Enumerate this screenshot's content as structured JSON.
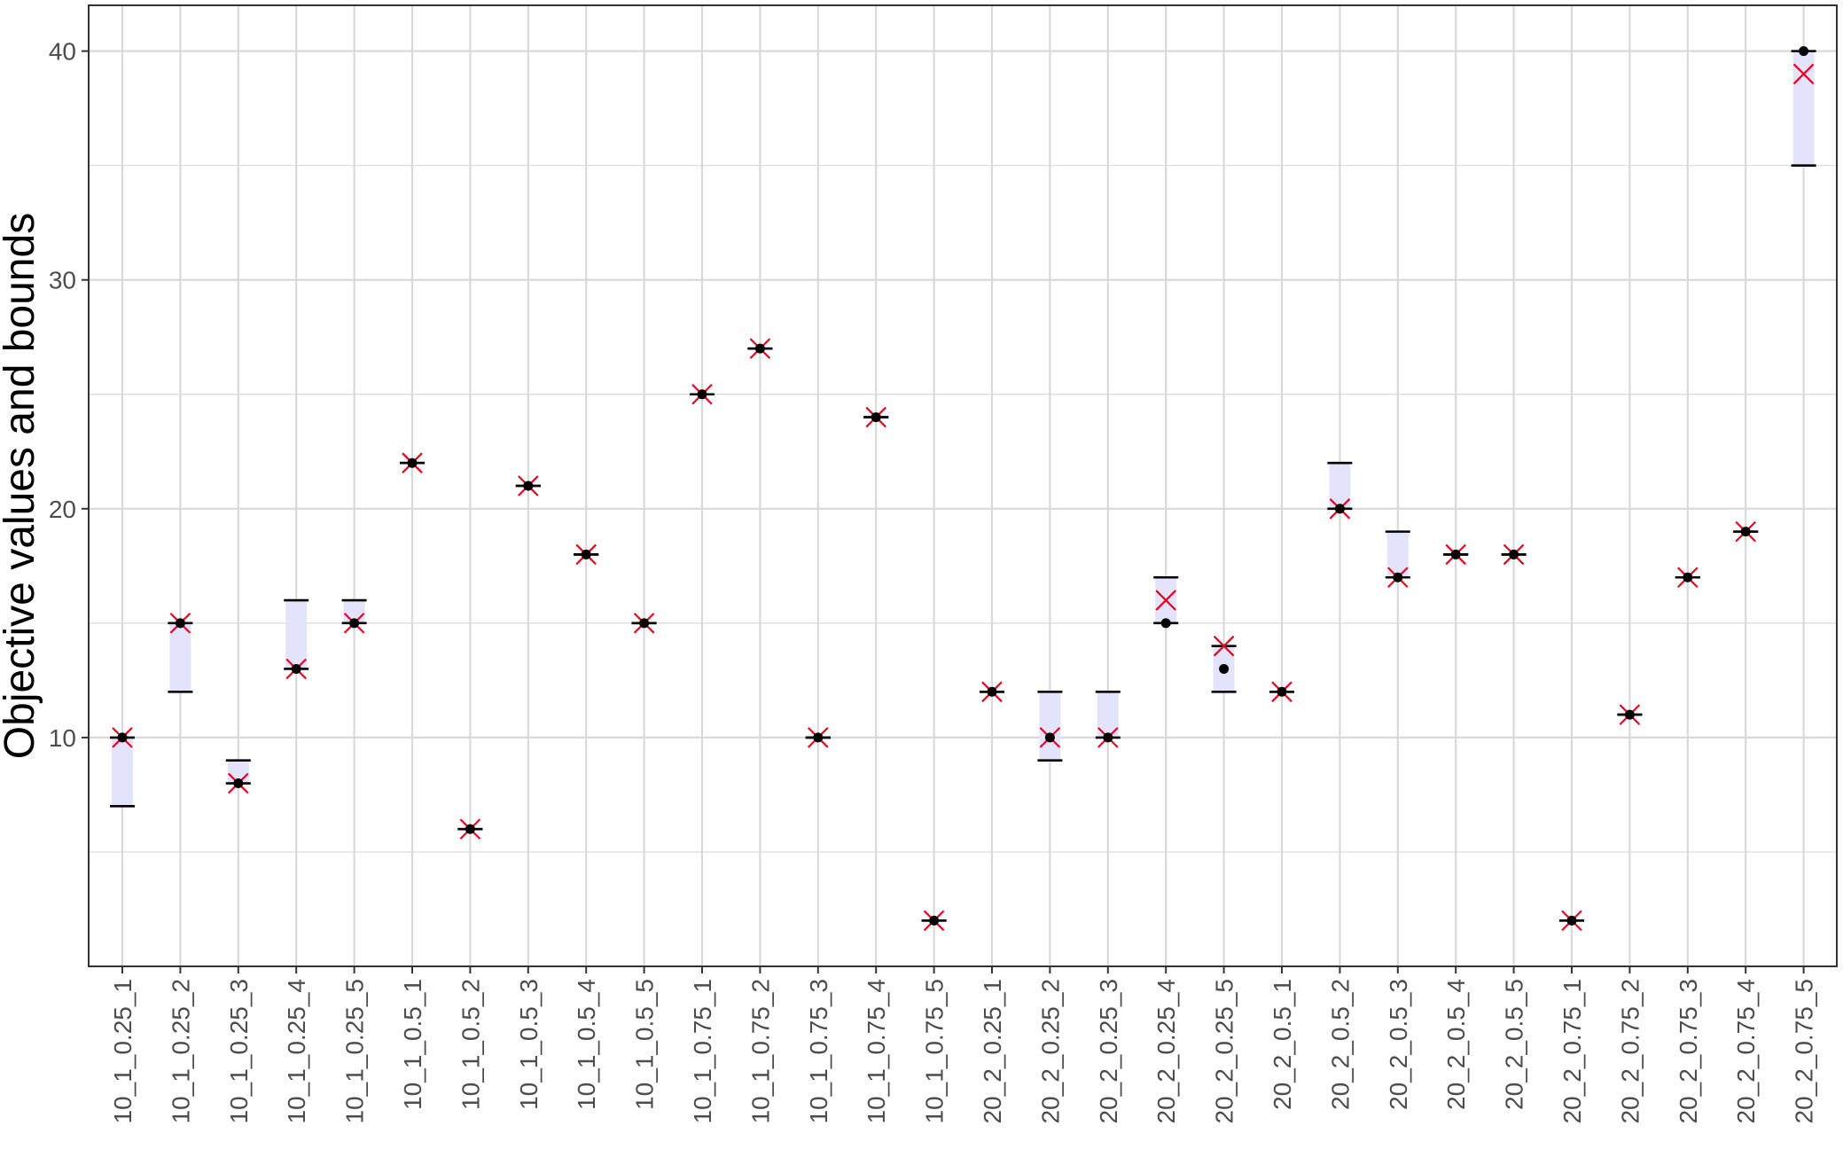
{
  "chart_data": {
    "type": "scatter",
    "title": "",
    "xlabel": "",
    "ylabel": "Objective values and bounds",
    "ylim": [
      0,
      42
    ],
    "yticks": [
      10,
      20,
      30,
      40
    ],
    "grid": true,
    "legend": "none",
    "colors": {
      "bound_band": "#e3e3fb",
      "bound_line": "#000000",
      "value_point": "#000000",
      "cross_marker": "#e8001c",
      "grid": "#d9d9d9",
      "panel_border": "#333333"
    },
    "categories": [
      "10_1_0.25_1",
      "10_1_0.25_2",
      "10_1_0.25_3",
      "10_1_0.25_4",
      "10_1_0.25_5",
      "10_1_0.5_1",
      "10_1_0.5_2",
      "10_1_0.5_3",
      "10_1_0.5_4",
      "10_1_0.5_5",
      "10_1_0.75_1",
      "10_1_0.75_2",
      "10_1_0.75_3",
      "10_1_0.75_4",
      "10_1_0.75_5",
      "20_2_0.25_1",
      "20_2_0.25_2",
      "20_2_0.25_3",
      "20_2_0.25_4",
      "20_2_0.25_5",
      "20_2_0.5_1",
      "20_2_0.5_2",
      "20_2_0.5_3",
      "20_2_0.5_4",
      "20_2_0.5_5",
      "20_2_0.75_1",
      "20_2_0.75_2",
      "20_2_0.75_3",
      "20_2_0.75_4",
      "20_2_0.75_5"
    ],
    "series": [
      {
        "role": "lower_bound",
        "values": [
          7,
          12,
          8,
          13,
          15,
          22,
          6,
          21,
          18,
          15,
          25,
          27,
          10,
          24,
          2,
          12,
          9,
          10,
          15,
          12,
          12,
          20,
          17,
          18,
          18,
          2,
          11,
          17,
          19,
          35
        ]
      },
      {
        "role": "upper_bound",
        "values": [
          10,
          15,
          9,
          16,
          16,
          22,
          6,
          21,
          18,
          15,
          25,
          27,
          10,
          24,
          2,
          12,
          12,
          12,
          17,
          14,
          12,
          22,
          19,
          18,
          18,
          2,
          11,
          17,
          19,
          40
        ]
      },
      {
        "role": "point",
        "marker": "dot",
        "values": [
          10,
          15,
          8,
          13,
          15,
          22,
          6,
          21,
          18,
          15,
          25,
          27,
          10,
          24,
          2,
          12,
          10,
          10,
          15,
          13,
          12,
          20,
          17,
          18,
          18,
          2,
          11,
          17,
          19,
          40
        ]
      },
      {
        "role": "point",
        "marker": "cross",
        "values": [
          10,
          15,
          8,
          13,
          15,
          22,
          6,
          21,
          18,
          15,
          25,
          27,
          10,
          24,
          2,
          12,
          10,
          10,
          16,
          14,
          12,
          20,
          17,
          18,
          18,
          2,
          11,
          17,
          19,
          39
        ]
      }
    ]
  }
}
